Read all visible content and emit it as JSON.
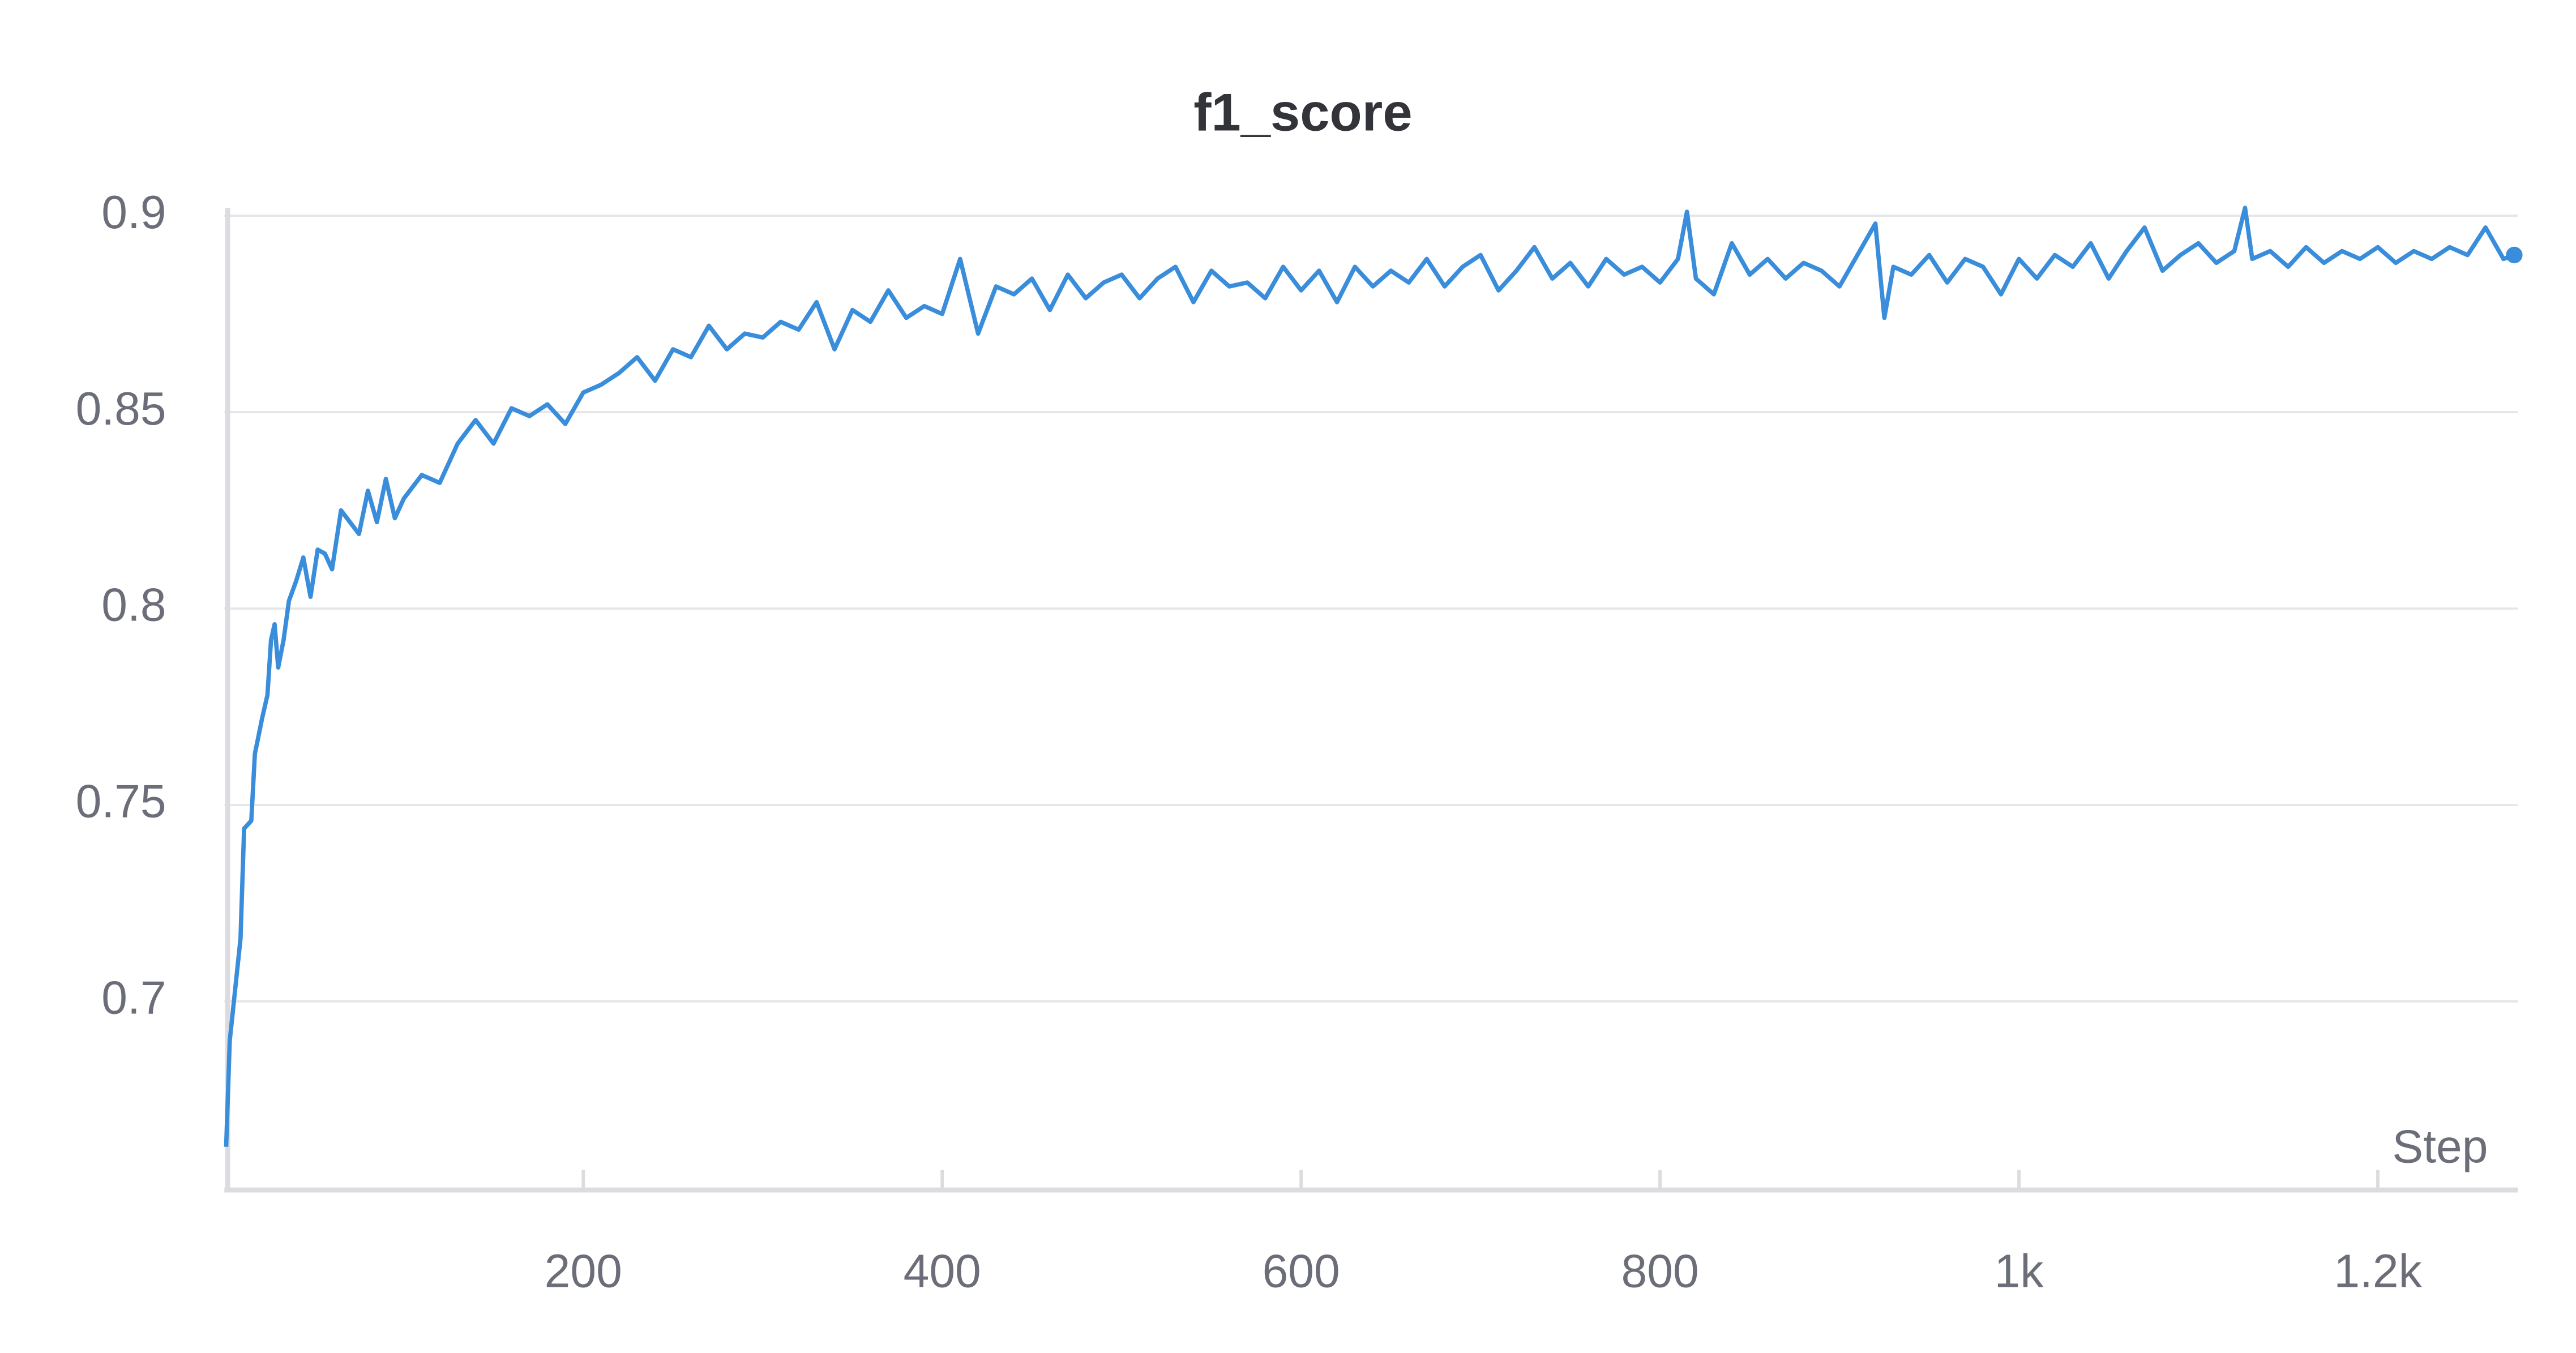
{
  "chart_data": {
    "type": "line",
    "title": "f1_score",
    "x_label": "Step",
    "xlim": [
      0,
      1278
    ],
    "ylim": [
      0.652,
      0.902
    ],
    "xticks": [
      200,
      400,
      600,
      800,
      {
        "value": 1000,
        "label": "1k"
      },
      {
        "value": 1200,
        "label": "1.2k"
      }
    ],
    "yticks": [
      0.7,
      0.75,
      0.8,
      0.85,
      0.9
    ],
    "grid": true,
    "series": [
      {
        "name": "f1_score",
        "color": "#3a8ddb",
        "x": [
          1,
          3,
          6,
          9,
          11,
          15,
          17,
          21,
          24,
          26,
          28,
          30,
          33,
          36,
          40,
          44,
          48,
          52,
          56,
          60,
          65,
          70,
          75,
          80,
          85,
          90,
          95,
          100,
          110,
          120,
          130,
          140,
          150,
          160,
          170,
          180,
          190,
          200,
          210,
          220,
          230,
          240,
          250,
          260,
          270,
          280,
          290,
          300,
          310,
          320,
          330,
          340,
          350,
          360,
          370,
          380,
          390,
          400,
          410,
          420,
          430,
          440,
          450,
          460,
          470,
          480,
          490,
          500,
          510,
          520,
          530,
          540,
          550,
          560,
          570,
          580,
          590,
          600,
          610,
          620,
          630,
          640,
          650,
          660,
          670,
          680,
          690,
          700,
          710,
          720,
          730,
          740,
          750,
          760,
          770,
          780,
          790,
          800,
          810,
          815,
          820,
          830,
          840,
          850,
          860,
          870,
          880,
          890,
          900,
          910,
          920,
          925,
          930,
          940,
          950,
          960,
          970,
          980,
          990,
          1000,
          1010,
          1020,
          1030,
          1040,
          1050,
          1060,
          1070,
          1080,
          1090,
          1100,
          1110,
          1120,
          1126,
          1130,
          1140,
          1150,
          1160,
          1170,
          1180,
          1190,
          1200,
          1210,
          1220,
          1230,
          1240,
          1250,
          1260,
          1270,
          1276
        ],
        "values": [
          0.663,
          0.69,
          0.703,
          0.716,
          0.744,
          0.746,
          0.763,
          0.772,
          0.778,
          0.792,
          0.796,
          0.785,
          0.792,
          0.802,
          0.807,
          0.813,
          0.803,
          0.815,
          0.814,
          0.81,
          0.825,
          0.822,
          0.819,
          0.83,
          0.822,
          0.833,
          0.823,
          0.828,
          0.834,
          0.832,
          0.842,
          0.848,
          0.842,
          0.851,
          0.849,
          0.852,
          0.847,
          0.855,
          0.857,
          0.86,
          0.864,
          0.858,
          0.866,
          0.864,
          0.872,
          0.866,
          0.87,
          0.869,
          0.873,
          0.871,
          0.878,
          0.866,
          0.876,
          0.873,
          0.881,
          0.874,
          0.877,
          0.875,
          0.889,
          0.87,
          0.882,
          0.88,
          0.884,
          0.876,
          0.885,
          0.879,
          0.883,
          0.885,
          0.879,
          0.884,
          0.887,
          0.878,
          0.886,
          0.882,
          0.883,
          0.879,
          0.887,
          0.881,
          0.886,
          0.878,
          0.887,
          0.882,
          0.886,
          0.883,
          0.889,
          0.882,
          0.887,
          0.89,
          0.881,
          0.886,
          0.892,
          0.884,
          0.888,
          0.882,
          0.889,
          0.885,
          0.887,
          0.883,
          0.889,
          0.901,
          0.884,
          0.88,
          0.893,
          0.885,
          0.889,
          0.884,
          0.888,
          0.886,
          0.882,
          0.89,
          0.898,
          0.874,
          0.887,
          0.885,
          0.89,
          0.883,
          0.889,
          0.887,
          0.88,
          0.889,
          0.884,
          0.89,
          0.887,
          0.893,
          0.884,
          0.891,
          0.897,
          0.886,
          0.89,
          0.893,
          0.888,
          0.891,
          0.902,
          0.889,
          0.891,
          0.887,
          0.892,
          0.888,
          0.891,
          0.889,
          0.892,
          0.888,
          0.891,
          0.889,
          0.892,
          0.89,
          0.897,
          0.889,
          0.89
        ]
      }
    ]
  }
}
